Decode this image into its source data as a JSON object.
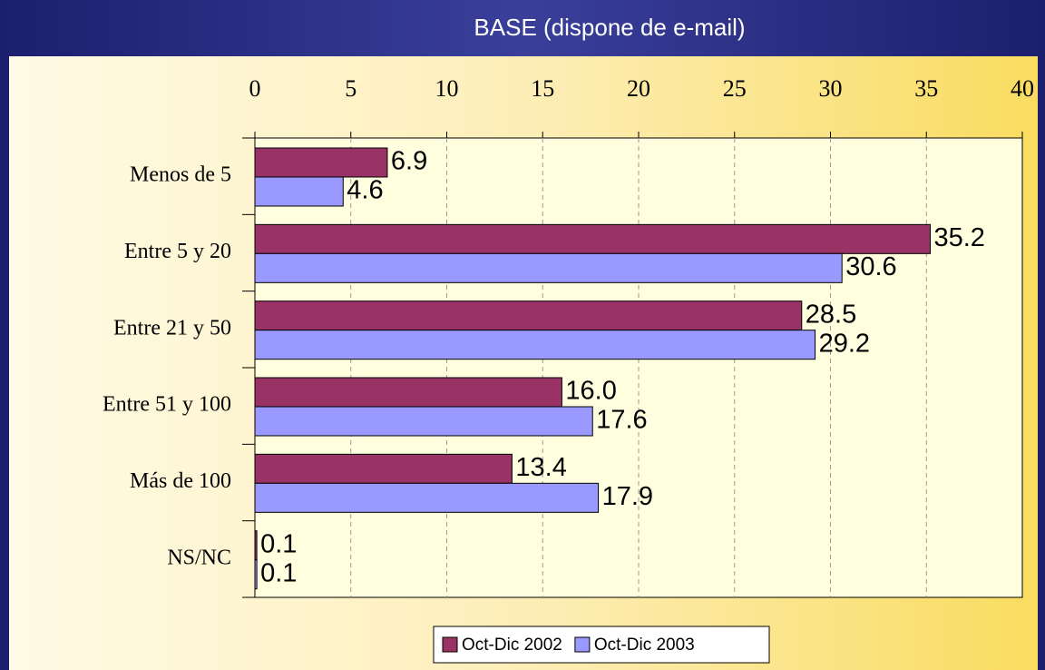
{
  "chart_data": {
    "type": "hbar",
    "title": "BASE (dispone de e-mail)",
    "categories": [
      "Menos de 5",
      "Entre 5 y 20",
      "Entre 21 y 50",
      "Entre 51 y 100",
      "Más de 100",
      "NS/NC"
    ],
    "series": [
      {
        "name": "Oct-Dic 2002",
        "color": "#993366",
        "values": [
          6.9,
          35.2,
          28.5,
          16.0,
          13.4,
          0.1
        ],
        "value_labels": [
          "6.9",
          "35.2",
          "28.5",
          "16.0",
          "13.4",
          "0.1"
        ]
      },
      {
        "name": "Oct-Dic 2003",
        "color": "#9999ff",
        "values": [
          4.6,
          30.6,
          29.2,
          17.6,
          17.9,
          0.1
        ],
        "value_labels": [
          "4.6",
          "30.6",
          "29.2",
          "17.6",
          "17.9",
          "0.1"
        ]
      }
    ],
    "xlim": [
      0,
      40
    ],
    "xticks": [
      0,
      5,
      10,
      15,
      20,
      25,
      30,
      35,
      40
    ],
    "grid": true,
    "legend": "bottom"
  }
}
